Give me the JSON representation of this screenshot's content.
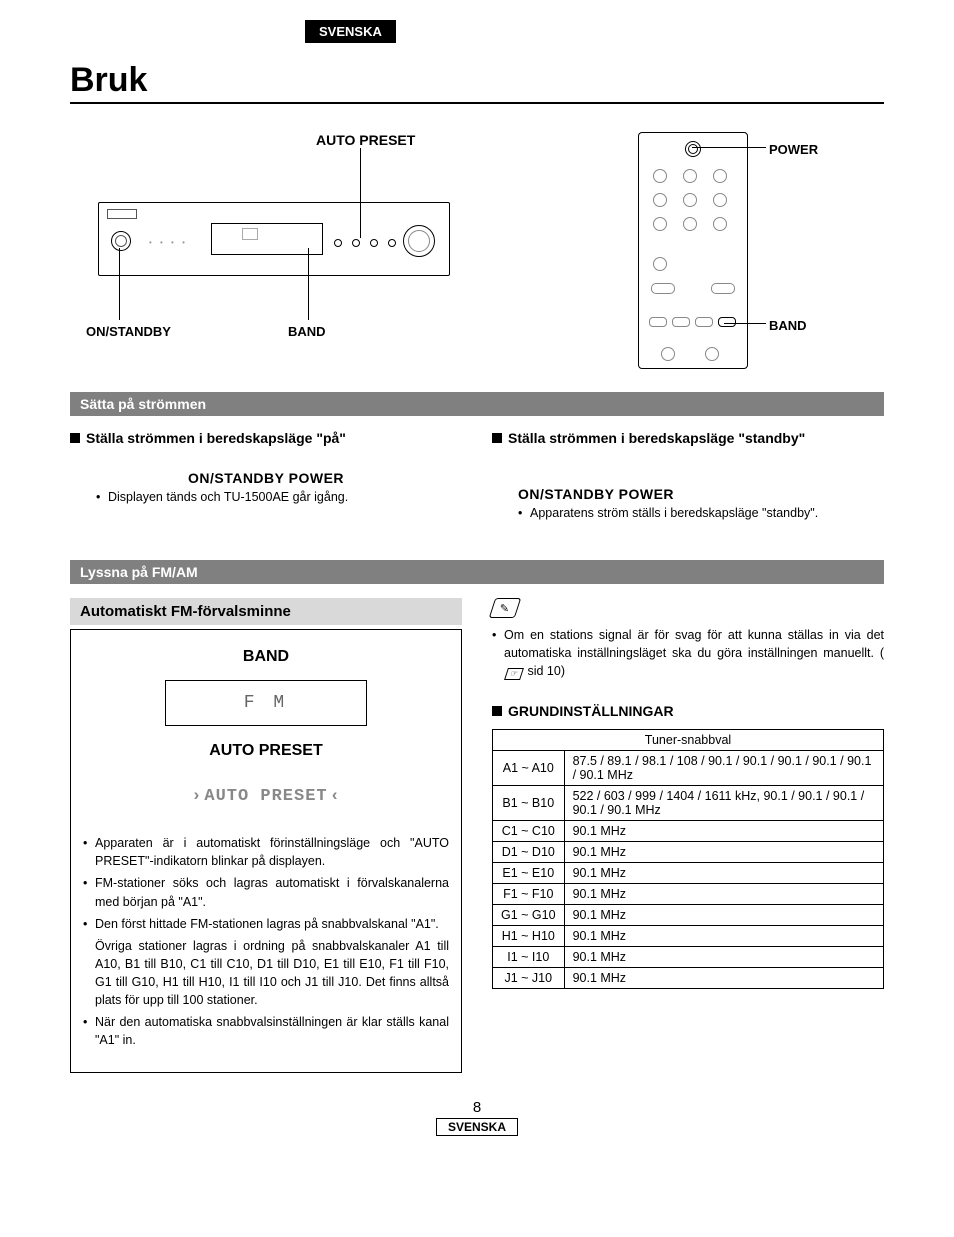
{
  "lang_tab": "SVENSKA",
  "title": "Bruk",
  "diagram_labels": {
    "auto_preset": "AUTO PRESET",
    "on_standby": "ON/STANDBY",
    "band": "BAND",
    "power": "POWER"
  },
  "section_power": {
    "bar": "Sätta på strömmen",
    "left_heading": "Ställa strömmen i beredskapsläge \"på\"",
    "left_buttons": "ON/STANDBY       POWER",
    "left_bullet": "Displayen tänds och TU-1500AE går igång.",
    "right_heading": "Ställa strömmen i beredskapsläge \"standby\"",
    "right_buttons": "ON/STANDBY       POWER",
    "right_bullet": "Apparatens ström ställs i beredskapsläge \"standby\"."
  },
  "section_listen": {
    "bar": "Lyssna på FM/AM",
    "sub_bar": "Automatiskt FM-förvalsminne",
    "step1_label": "BAND",
    "lcd1": "F M",
    "step2_label": "AUTO PRESET",
    "lcd2": "AUTO PRESET",
    "bullets": [
      "Apparaten är i automatiskt förinställningsläge och \"AUTO PRESET\"-indikatorn blinkar på displayen.",
      "FM-stationer söks och lagras automatiskt i förvalskanalerna med början på \"A1\".",
      "Den först hittade FM-stationen lagras på snabbvalskanal \"A1\".",
      "Övriga stationer lagras i ordning på snabbvalskanaler A1 till A10, B1 till B10, C1 till C10, D1 till D10, E1 till E10, F1 till F10, G1 till G10, H1 till H10, I1 till I10 och J1 till J10. Det finns alltså plats för upp till 100 stationer.",
      "När den automatiska snabbvalsinställningen är klar ställs kanal \"A1\" in."
    ]
  },
  "right_note": {
    "text_before": "Om en stations signal är för svag för att kunna ställas in via det automatiska inställningsläget ska du göra inställningen manuellt. (",
    "page_ref": "sid 10",
    "text_after": ")"
  },
  "defaults_heading": "GRUNDINSTÄLLNINGAR",
  "table": {
    "header": "Tuner-snabbval",
    "rows": [
      {
        "range": "A1 ~ A10",
        "val": "87.5 / 89.1 / 98.1 / 108 / 90.1 / 90.1 / 90.1 / 90.1 / 90.1 / 90.1 MHz"
      },
      {
        "range": "B1 ~ B10",
        "val": "522 / 603 / 999 / 1404 / 1611 kHz, 90.1 / 90.1 / 90.1 / 90.1 / 90.1 MHz"
      },
      {
        "range": "C1 ~ C10",
        "val": "90.1 MHz"
      },
      {
        "range": "D1 ~ D10",
        "val": "90.1 MHz"
      },
      {
        "range": "E1 ~ E10",
        "val": "90.1 MHz"
      },
      {
        "range": "F1 ~ F10",
        "val": "90.1 MHz"
      },
      {
        "range": "G1 ~ G10",
        "val": "90.1 MHz"
      },
      {
        "range": "H1 ~ H10",
        "val": "90.1 MHz"
      },
      {
        "range": "I1 ~ I10",
        "val": "90.1 MHz"
      },
      {
        "range": "J1 ~ J10",
        "val": "90.1 MHz"
      }
    ]
  },
  "page_number": "8",
  "lang_bottom": "SVENSKA",
  "colors": {
    "section_bar_bg": "#808080",
    "sub_bar_bg": "#d9d9d9",
    "text": "#000000",
    "page_bg": "#ffffff"
  }
}
